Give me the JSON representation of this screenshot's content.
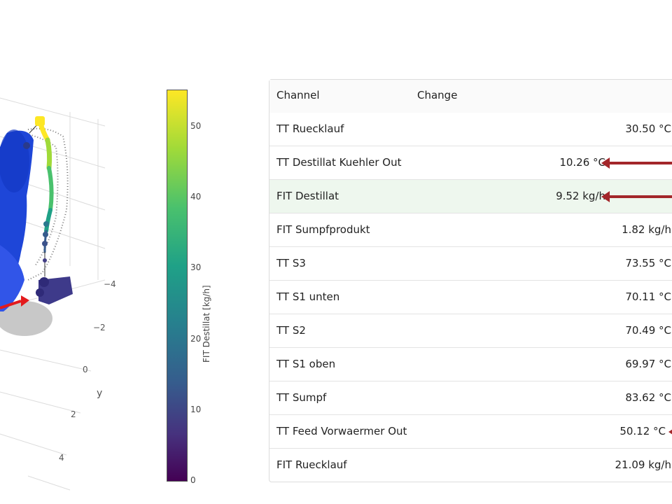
{
  "plot3d": {
    "axis_label_y": "y",
    "axis_ticks_y": [
      "−4",
      "−2",
      "0",
      "2",
      "4"
    ]
  },
  "colorbar": {
    "title": "FIT Destillat [kg/h]",
    "ticks": [
      "50",
      "40",
      "30",
      "20",
      "10",
      "0"
    ],
    "colormap": "viridis",
    "range": [
      0,
      55
    ]
  },
  "table": {
    "headers": {
      "channel": "Channel",
      "change": "Change"
    },
    "rows": [
      {
        "channel": "TT Ruecklauf",
        "value": "30.50 °C",
        "change": "up",
        "highlight": false
      },
      {
        "channel": "TT Destillat Kuehler Out",
        "value": "10.26 °C",
        "change": "down-large",
        "highlight": false
      },
      {
        "channel": "FIT Destillat",
        "value": "9.52 kg/h",
        "change": "down-large",
        "highlight": true
      },
      {
        "channel": "FIT Sumpfprodukt",
        "value": "1.82 kg/h",
        "change": "up",
        "highlight": false
      },
      {
        "channel": "TT S3",
        "value": "73.55 °C",
        "change": "up",
        "highlight": false
      },
      {
        "channel": "TT S1 unten",
        "value": "70.11 °C",
        "change": "up",
        "highlight": false
      },
      {
        "channel": "TT S2",
        "value": "70.49 °C",
        "change": "up",
        "highlight": false
      },
      {
        "channel": "TT S1 oben",
        "value": "69.97 °C",
        "change": "up",
        "highlight": false
      },
      {
        "channel": "TT Sumpf",
        "value": "83.62 °C",
        "change": "up",
        "highlight": false
      },
      {
        "channel": "TT Feed Vorwaermer Out",
        "value": "50.12 °C",
        "change": "down-small",
        "highlight": false
      },
      {
        "channel": "FIT Ruecklauf",
        "value": "21.09 kg/h",
        "change": "up",
        "highlight": false
      }
    ]
  },
  "colors": {
    "arrow": "#a3262a",
    "positive": "#7bbf73",
    "highlight_row": "#eef7ee"
  }
}
